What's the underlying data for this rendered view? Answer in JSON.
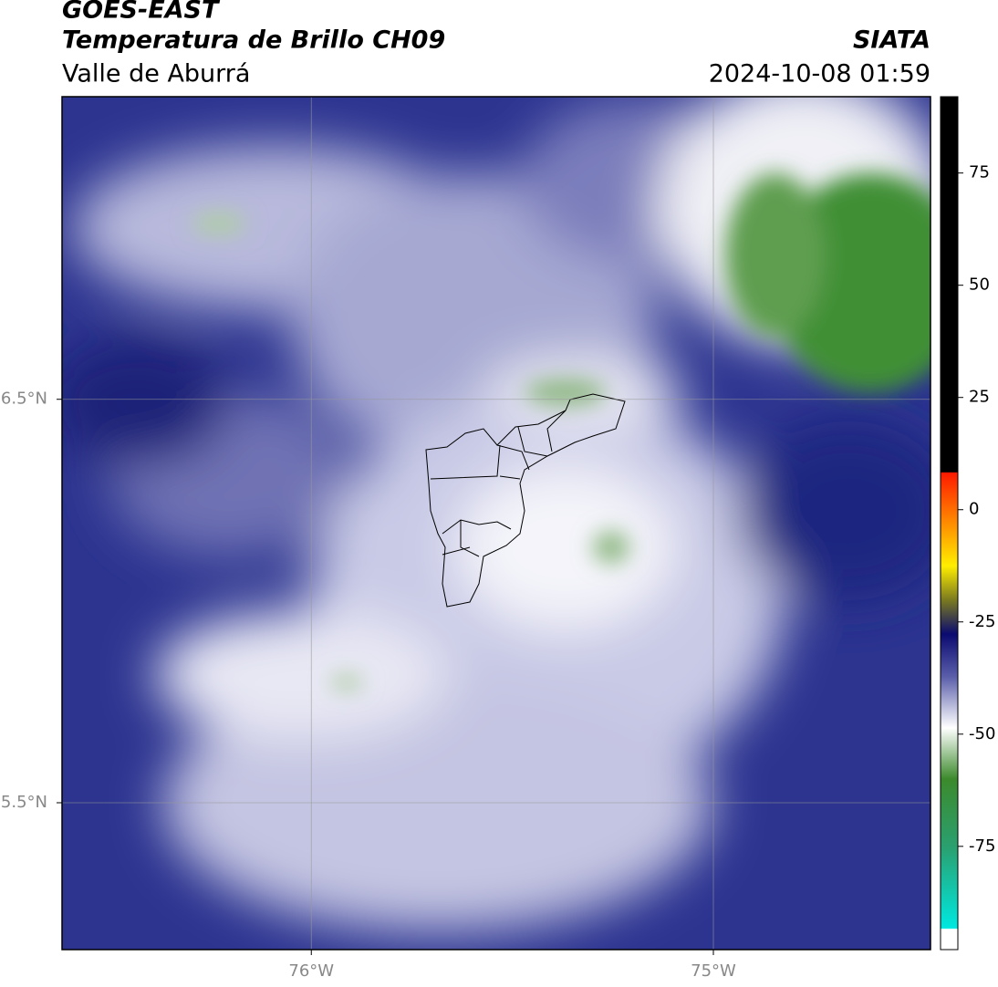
{
  "header": {
    "title": "GOES-EAST",
    "subtitle": "Temperatura de Brillo CH09",
    "region": "Valle de Aburrá",
    "source": "SIATA",
    "datetime": "2024-10-08 01:59"
  },
  "map": {
    "xlim": [
      -76.62,
      -74.46
    ],
    "ylim": [
      5.136,
      7.25
    ],
    "xticks": [
      {
        "value": -76,
        "label": "76°W"
      },
      {
        "value": -75,
        "label": "75°W"
      }
    ],
    "yticks": [
      {
        "value": 6.5,
        "label": "6.5°N"
      },
      {
        "value": 5.5,
        "label": "5.5°N"
      }
    ]
  },
  "colorbar": {
    "lim": [
      -98,
      92
    ],
    "ticks": [
      75,
      50,
      25,
      0,
      -25,
      -50,
      -75
    ]
  }
}
